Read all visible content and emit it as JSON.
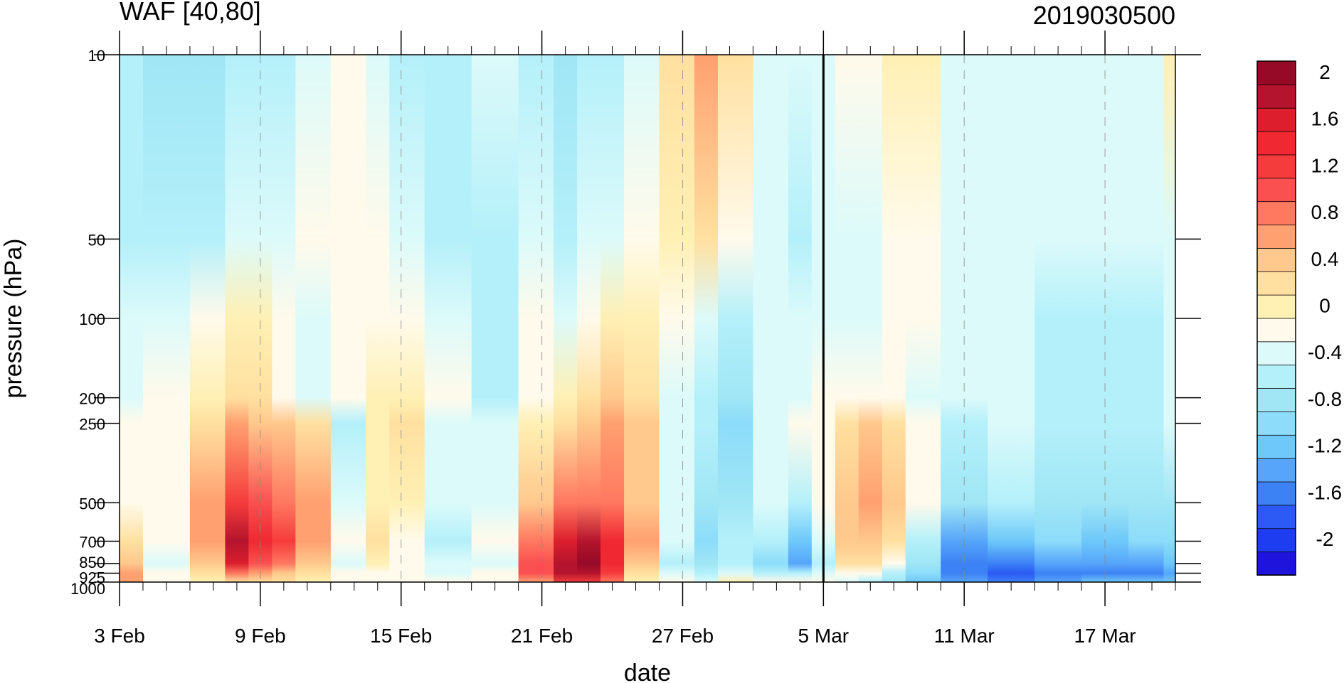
{
  "chart_data": {
    "type": "heatmap",
    "title": "WAF [40,80]",
    "date_label": "2019030500",
    "xlabel": "date",
    "ylabel": "pressure (hPa)",
    "x_range": [
      "2019-02-03",
      "2019-03-20"
    ],
    "x_ticks": [
      {
        "date": "2019-02-03",
        "label": "3 Feb"
      },
      {
        "date": "2019-02-09",
        "label": "9 Feb"
      },
      {
        "date": "2019-02-15",
        "label": "15 Feb"
      },
      {
        "date": "2019-02-21",
        "label": "21 Feb"
      },
      {
        "date": "2019-02-27",
        "label": "27 Feb"
      },
      {
        "date": "2019-03-05",
        "label": "5 Mar"
      },
      {
        "date": "2019-03-11",
        "label": "11 Mar"
      },
      {
        "date": "2019-03-17",
        "label": "17 Mar"
      }
    ],
    "y_scale": "log",
    "y_reversed": true,
    "ylim": [
      10,
      1000
    ],
    "y_ticks": [
      {
        "value": 10,
        "label": "10"
      },
      {
        "value": 50,
        "label": "50"
      },
      {
        "value": 100,
        "label": "100"
      },
      {
        "value": 200,
        "label": "200"
      },
      {
        "value": 250,
        "label": "250"
      },
      {
        "value": 500,
        "label": "500"
      },
      {
        "value": 700,
        "label": "700"
      },
      {
        "value": 850,
        "label": "850"
      },
      {
        "value": 925,
        "label": "925"
      },
      {
        "value": 1000,
        "label": "1000"
      }
    ],
    "current_date_line": "2019-03-05",
    "colorbar": {
      "levels": [
        -2.2,
        -2.0,
        -1.8,
        -1.6,
        -1.4,
        -1.2,
        -1.0,
        -0.8,
        -0.6,
        -0.4,
        -0.2,
        0.0,
        0.2,
        0.4,
        0.6,
        0.8,
        1.0,
        1.2,
        1.4,
        1.6,
        1.8,
        2.0,
        2.2
      ],
      "labels": [
        "2",
        "1.6",
        "1.2",
        "0.8",
        "0.4",
        "0",
        "-0.4",
        "-0.8",
        "-1.2",
        "-1.6",
        "-2"
      ],
      "label_values": [
        2,
        1.6,
        1.2,
        0.8,
        0.4,
        0,
        -0.4,
        -0.8,
        -1.2,
        -1.6,
        -2
      ],
      "colors": [
        "#1e14dc",
        "#1e3cf0",
        "#2d5af5",
        "#3c82f5",
        "#56a5fa",
        "#6ec8fa",
        "#8cdcfa",
        "#a0e6f5",
        "#b4f0fa",
        "#dcfafa",
        "#fffaeb",
        "#fff0b4",
        "#ffe0a0",
        "#ffc88c",
        "#ffa070",
        "#ff7860",
        "#fa5050",
        "#f53c3c",
        "#f02832",
        "#dc1e2d",
        "#b4142d",
        "#960a28"
      ]
    },
    "series": [
      {
        "date": "2019-02-03",
        "values": [
          -0.5,
          -0.6,
          -0.4,
          -0.3,
          -0.2,
          -0.1,
          0.3,
          0.5,
          0.6,
          0.6
        ]
      },
      {
        "date": "2019-02-05",
        "values": [
          -0.7,
          -0.5,
          -0.3,
          -0.2,
          -0.1,
          -0.1,
          -0.2,
          -0.3,
          -0.2,
          -0.1
        ]
      },
      {
        "date": "2019-02-07",
        "values": [
          -0.7,
          -0.5,
          -0.1,
          0.1,
          0.3,
          0.6,
          0.7,
          0.5,
          0.3,
          0.1
        ]
      },
      {
        "date": "2019-02-08",
        "values": [
          -0.6,
          -0.3,
          0.1,
          0.3,
          0.6,
          1.2,
          1.9,
          1.6,
          0.9,
          0.3
        ]
      },
      {
        "date": "2019-02-09",
        "values": [
          -0.6,
          -0.3,
          0.0,
          0.2,
          0.5,
          1.0,
          1.4,
          1.1,
          0.6,
          0.2
        ]
      },
      {
        "date": "2019-02-10",
        "values": [
          -0.5,
          -0.3,
          -0.2,
          -0.1,
          0.4,
          0.8,
          1.2,
          0.9,
          0.5,
          0.2
        ]
      },
      {
        "date": "2019-02-11",
        "values": [
          -0.4,
          -0.2,
          -0.4,
          -0.4,
          0.3,
          0.6,
          0.6,
          0.4,
          0.3,
          0.1
        ]
      },
      {
        "date": "2019-02-13",
        "values": [
          -0.2,
          -0.1,
          -0.1,
          -0.2,
          -0.5,
          -0.3,
          -0.1,
          -0.3,
          -0.2,
          -0.1
        ]
      },
      {
        "date": "2019-02-14",
        "values": [
          -0.3,
          -0.2,
          -0.1,
          0.0,
          0.1,
          0.1,
          0.2,
          0.1,
          -0.1,
          -0.2
        ]
      },
      {
        "date": "2019-02-15",
        "values": [
          -0.5,
          -0.4,
          -0.2,
          0.1,
          0.2,
          0.1,
          -0.1,
          -0.1,
          -0.1,
          -0.1
        ]
      },
      {
        "date": "2019-02-17",
        "values": [
          -0.6,
          -0.5,
          -0.3,
          -0.2,
          -0.3,
          -0.4,
          -0.5,
          -0.4,
          -0.3,
          -0.2
        ]
      },
      {
        "date": "2019-02-19",
        "values": [
          -0.3,
          -0.5,
          -0.6,
          -0.5,
          -0.4,
          -0.3,
          -0.2,
          -0.3,
          -0.2,
          -0.1
        ]
      },
      {
        "date": "2019-02-21",
        "values": [
          -0.6,
          -0.4,
          -0.2,
          -0.1,
          0.1,
          0.5,
          0.9,
          1.1,
          1.0,
          0.6
        ]
      },
      {
        "date": "2019-02-22",
        "values": [
          -0.7,
          -0.5,
          -0.3,
          0.1,
          0.3,
          0.8,
          1.6,
          1.9,
          1.8,
          1.2
        ]
      },
      {
        "date": "2019-02-23",
        "values": [
          -0.6,
          -0.4,
          -0.1,
          0.2,
          0.4,
          0.9,
          1.9,
          2.0,
          1.9,
          1.2
        ]
      },
      {
        "date": "2019-02-24",
        "values": [
          -0.5,
          -0.3,
          0.1,
          0.5,
          0.7,
          0.8,
          1.4,
          1.5,
          1.2,
          0.8
        ]
      },
      {
        "date": "2019-02-25",
        "values": [
          -0.4,
          -0.2,
          0.0,
          0.3,
          0.4,
          0.4,
          0.6,
          0.5,
          0.3,
          0.1
        ]
      },
      {
        "date": "2019-02-27",
        "values": [
          0.3,
          0.1,
          -0.2,
          -0.3,
          -0.3,
          -0.3,
          -0.4,
          -0.5,
          -0.4,
          -0.2
        ]
      },
      {
        "date": "2019-02-28",
        "values": [
          0.6,
          0.2,
          -0.3,
          -0.5,
          -0.6,
          -0.7,
          -0.9,
          -0.8,
          -0.5,
          -0.3
        ]
      },
      {
        "date": "2019-03-01",
        "values": [
          0.2,
          -0.1,
          -0.5,
          -0.8,
          -1.0,
          -0.7,
          -0.6,
          -0.5,
          -0.4,
          0.1
        ]
      },
      {
        "date": "2019-03-03",
        "values": [
          -0.3,
          -0.4,
          -0.4,
          -0.4,
          -0.4,
          -0.4,
          -0.6,
          -0.9,
          -0.6,
          -0.2
        ]
      },
      {
        "date": "2019-03-04",
        "values": [
          -0.3,
          -0.5,
          -0.4,
          -0.3,
          -0.2,
          -0.5,
          -1.1,
          -1.3,
          -0.6,
          -0.1
        ]
      },
      {
        "date": "2019-03-05",
        "values": [
          -0.3,
          -0.4,
          -0.3,
          -0.2,
          -0.1,
          -0.2,
          -0.4,
          -0.5,
          -0.3,
          -0.1
        ]
      },
      {
        "date": "2019-03-06",
        "values": [
          -0.2,
          -0.4,
          -0.3,
          -0.1,
          0.2,
          0.4,
          0.4,
          0.2,
          -0.1,
          -0.3
        ]
      },
      {
        "date": "2019-03-07",
        "values": [
          -0.1,
          -0.3,
          -0.3,
          -0.1,
          0.4,
          0.6,
          0.5,
          0.2,
          -0.2,
          -0.5
        ]
      },
      {
        "date": "2019-03-08",
        "values": [
          0.0,
          -0.2,
          -0.2,
          -0.2,
          0.3,
          0.4,
          0.2,
          -0.2,
          -0.5,
          -0.8
        ]
      },
      {
        "date": "2019-03-09",
        "values": [
          0.1,
          -0.1,
          -0.2,
          -0.3,
          -0.1,
          -0.2,
          -0.5,
          -0.8,
          -1.0,
          -1.1
        ]
      },
      {
        "date": "2019-03-11",
        "values": [
          -0.3,
          -0.3,
          -0.3,
          -0.4,
          -0.5,
          -0.7,
          -1.3,
          -1.5,
          -1.6,
          -1.3
        ]
      },
      {
        "date": "2019-03-13",
        "values": [
          -0.3,
          -0.4,
          -0.4,
          -0.3,
          -0.4,
          -0.6,
          -1.1,
          -1.5,
          -1.8,
          -1.5
        ]
      },
      {
        "date": "2019-03-15",
        "values": [
          -0.3,
          -0.4,
          -0.5,
          -0.5,
          -0.6,
          -0.8,
          -1.0,
          -1.3,
          -1.6,
          -1.3
        ]
      },
      {
        "date": "2019-03-17",
        "values": [
          -0.3,
          -0.4,
          -0.5,
          -0.5,
          -0.6,
          -0.8,
          -1.1,
          -1.4,
          -1.6,
          -1.2
        ]
      },
      {
        "date": "2019-03-19",
        "values": [
          -0.3,
          -0.4,
          -0.5,
          -0.5,
          -0.6,
          -0.8,
          -1.0,
          -1.3,
          -1.5,
          -1.2
        ]
      },
      {
        "date": "2019-03-20",
        "values": [
          0.1,
          -0.3,
          -0.4,
          -0.3,
          -0.4,
          -0.7,
          -0.9,
          -1.2,
          -1.4,
          -1.1
        ]
      }
    ]
  }
}
